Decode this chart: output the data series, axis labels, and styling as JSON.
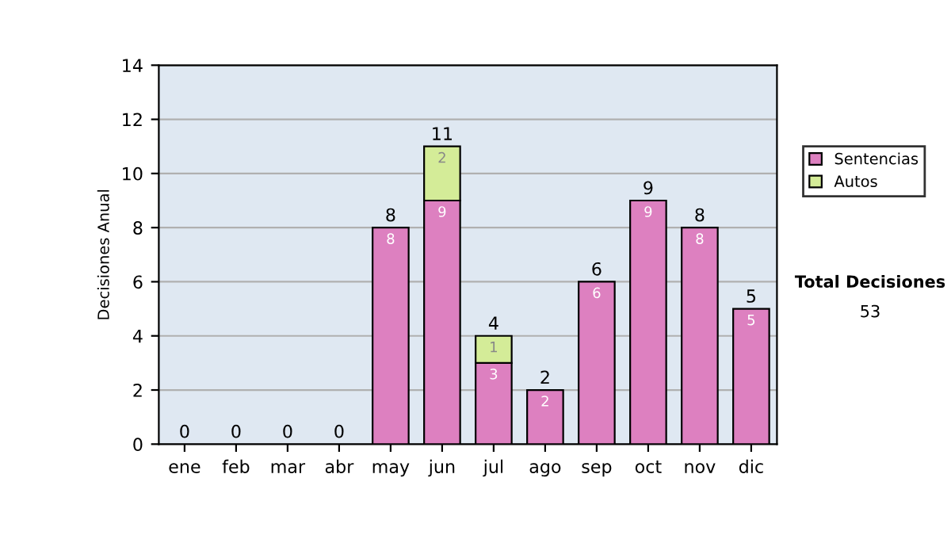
{
  "chart_data": {
    "type": "bar",
    "stacked": true,
    "ylabel": "Decisiones Anual",
    "categories": [
      "ene",
      "feb",
      "mar",
      "abr",
      "may",
      "jun",
      "jul",
      "ago",
      "sep",
      "oct",
      "nov",
      "dic"
    ],
    "series": [
      {
        "name": "Sentencias",
        "color": "#dd80c0",
        "values": [
          0,
          0,
          0,
          0,
          8,
          9,
          3,
          2,
          6,
          9,
          8,
          5
        ],
        "value_labels": [
          null,
          null,
          null,
          null,
          "8",
          "9",
          "3",
          "2",
          "6",
          "9",
          "8",
          "5"
        ]
      },
      {
        "name": "Autos",
        "color": "#d4ec98",
        "values": [
          0,
          0,
          0,
          0,
          0,
          2,
          1,
          0,
          0,
          0,
          0,
          0
        ],
        "value_labels": [
          null,
          null,
          null,
          null,
          null,
          "2",
          "1",
          null,
          null,
          null,
          null,
          null
        ]
      }
    ],
    "totals": [
      "0",
      "0",
      "0",
      "0",
      "8",
      "11",
      "4",
      "2",
      "6",
      "9",
      "8",
      "5"
    ],
    "ylim": [
      0,
      14
    ],
    "yticks": [
      0,
      2,
      4,
      6,
      8,
      10,
      12,
      14
    ],
    "grid": "y",
    "legend": "right",
    "annotations": [
      "Total Decisiones",
      "53"
    ]
  }
}
